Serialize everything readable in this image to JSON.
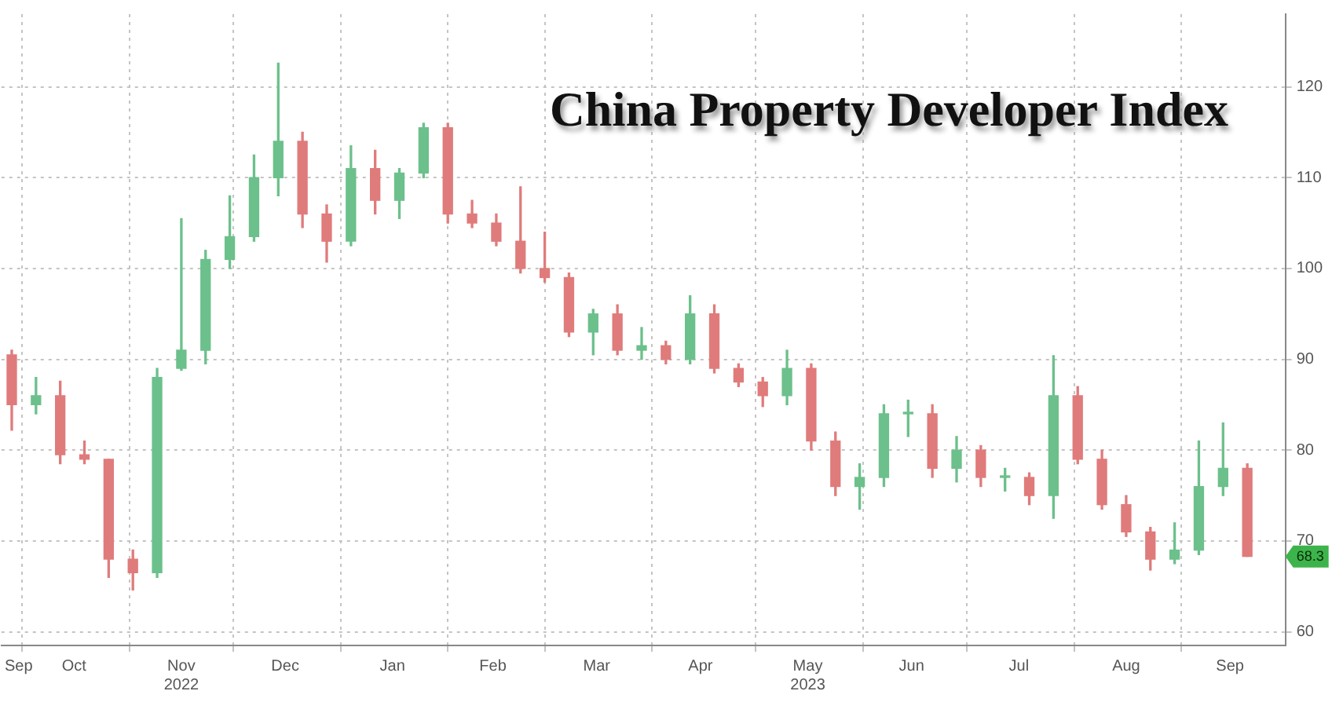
{
  "chart_data": {
    "type": "candlestick",
    "title": "China Property Developer Index",
    "x": [
      "2022-09-28",
      "2022-10-05",
      "2022-10-12",
      "2022-10-19",
      "2022-10-26",
      "2022-11-02",
      "2022-11-09",
      "2022-11-16",
      "2022-11-23",
      "2022-11-30",
      "2022-12-07",
      "2022-12-14",
      "2022-12-21",
      "2022-12-28",
      "2023-01-04",
      "2023-01-11",
      "2023-01-18",
      "2023-01-25",
      "2023-02-01",
      "2023-02-08",
      "2023-02-15",
      "2023-02-22",
      "2023-03-01",
      "2023-03-08",
      "2023-03-15",
      "2023-03-22",
      "2023-03-29",
      "2023-04-05",
      "2023-04-12",
      "2023-04-19",
      "2023-04-26",
      "2023-05-03",
      "2023-05-10",
      "2023-05-17",
      "2023-05-24",
      "2023-05-31",
      "2023-06-07",
      "2023-06-14",
      "2023-06-21",
      "2023-06-28",
      "2023-07-05",
      "2023-07-12",
      "2023-07-19",
      "2023-07-26",
      "2023-08-02",
      "2023-08-09",
      "2023-08-16",
      "2023-08-23",
      "2023-08-30",
      "2023-09-06",
      "2023-09-13",
      "2023-09-20"
    ],
    "ohlc": [
      [
        90.5,
        91,
        82.2,
        85
      ],
      [
        85,
        88,
        84,
        86
      ],
      [
        86,
        87.6,
        78.5,
        79.5
      ],
      [
        79.5,
        81,
        78.5,
        79
      ],
      [
        79,
        79,
        66,
        68
      ],
      [
        68,
        69,
        64.6,
        66.5
      ],
      [
        66.5,
        89,
        66,
        88
      ],
      [
        89,
        105.5,
        88.8,
        91
      ],
      [
        91,
        102,
        89.5,
        101
      ],
      [
        101,
        108,
        100,
        103.5
      ],
      [
        103.5,
        112.5,
        103,
        110
      ],
      [
        110,
        122.6,
        108,
        114
      ],
      [
        114,
        115,
        104.5,
        106
      ],
      [
        106,
        107,
        100.7,
        103
      ],
      [
        103,
        113.5,
        102.5,
        111
      ],
      [
        111,
        113,
        106,
        107.5
      ],
      [
        107.5,
        111,
        105.5,
        110.5
      ],
      [
        110.5,
        116,
        110,
        115.5
      ],
      [
        115.5,
        116,
        105,
        106
      ],
      [
        106,
        107.5,
        104.5,
        105
      ],
      [
        105,
        106,
        102.5,
        103
      ],
      [
        103,
        109,
        99.5,
        100
      ],
      [
        100,
        104,
        98.5,
        99
      ],
      [
        99,
        99.5,
        92.5,
        93
      ],
      [
        93,
        95.5,
        90.5,
        95
      ],
      [
        95,
        96,
        90.5,
        91
      ],
      [
        91,
        93.5,
        90,
        91.5
      ],
      [
        91.5,
        92,
        89.5,
        90
      ],
      [
        90,
        97,
        89.5,
        95
      ],
      [
        95,
        96,
        88.5,
        89
      ],
      [
        89,
        89.5,
        87,
        87.5
      ],
      [
        87.5,
        88,
        84.8,
        86
      ],
      [
        86,
        91,
        85,
        89
      ],
      [
        89,
        89.5,
        80,
        81
      ],
      [
        81,
        82,
        75,
        76
      ],
      [
        76,
        78.5,
        73.5,
        77
      ],
      [
        77,
        85,
        76,
        84
      ],
      [
        84,
        85.5,
        81.5,
        84
      ],
      [
        84,
        85,
        77,
        78
      ],
      [
        78,
        81.5,
        76.5,
        80
      ],
      [
        80,
        80.5,
        76,
        77
      ],
      [
        77,
        78,
        75.5,
        77
      ],
      [
        77,
        77.5,
        74,
        75
      ],
      [
        75,
        90.4,
        72.5,
        86
      ],
      [
        86,
        87,
        78.5,
        79
      ],
      [
        79,
        80,
        73.5,
        74
      ],
      [
        74,
        75,
        70.5,
        71
      ],
      [
        71,
        71.5,
        66.8,
        68
      ],
      [
        68,
        72,
        67.5,
        69
      ],
      [
        69,
        81,
        68.5,
        76
      ],
      [
        76,
        83,
        75,
        78
      ],
      [
        78,
        78.5,
        68.3,
        68.3
      ]
    ],
    "colors": [
      "#e07b7b",
      "#6cc08b",
      "#e07b7b",
      "#e07b7b",
      "#e07b7b",
      "#e07b7b",
      "#6cc08b",
      "#6cc08b",
      "#6cc08b",
      "#6cc08b",
      "#6cc08b",
      "#6cc08b",
      "#e07b7b",
      "#e07b7b",
      "#6cc08b",
      "#e07b7b",
      "#6cc08b",
      "#6cc08b",
      "#e07b7b",
      "#e07b7b",
      "#e07b7b",
      "#e07b7b",
      "#e07b7b",
      "#e07b7b",
      "#6cc08b",
      "#e07b7b",
      "#6cc08b",
      "#e07b7b",
      "#6cc08b",
      "#e07b7b",
      "#e07b7b",
      "#e07b7b",
      "#6cc08b",
      "#e07b7b",
      "#e07b7b",
      "#6cc08b",
      "#6cc08b",
      "#6cc08b",
      "#e07b7b",
      "#6cc08b",
      "#e07b7b",
      "#6cc08b",
      "#e07b7b",
      "#6cc08b",
      "#e07b7b",
      "#e07b7b",
      "#e07b7b",
      "#e07b7b",
      "#6cc08b",
      "#6cc08b",
      "#6cc08b",
      "#e07b7b"
    ],
    "xlim": [
      "2022-09-25",
      "2023-10-01"
    ],
    "xticks": [
      {
        "value": "2022-09-30",
        "label": "Sep"
      },
      {
        "value": "2022-10-01",
        "label": null
      },
      {
        "value": "2022-10-16",
        "label": "Oct"
      },
      {
        "value": "2022-11-01",
        "label": null
      },
      {
        "value": "2022-11-16",
        "label": "Nov\n2022"
      },
      {
        "value": "2022-12-01",
        "label": null
      },
      {
        "value": "2022-12-16",
        "label": "Dec"
      },
      {
        "value": "2023-01-01",
        "label": null
      },
      {
        "value": "2023-01-16",
        "label": "Jan"
      },
      {
        "value": "2023-02-01",
        "label": null
      },
      {
        "value": "2023-02-14",
        "label": "Feb"
      },
      {
        "value": "2023-03-01",
        "label": null
      },
      {
        "value": "2023-03-16",
        "label": "Mar"
      },
      {
        "value": "2023-04-01",
        "label": null
      },
      {
        "value": "2023-04-15",
        "label": "Apr"
      },
      {
        "value": "2023-05-01",
        "label": null
      },
      {
        "value": "2023-05-16",
        "label": "May\n2023"
      },
      {
        "value": "2023-06-01",
        "label": null
      },
      {
        "value": "2023-06-15",
        "label": "Jun"
      },
      {
        "value": "2023-07-01",
        "label": null
      },
      {
        "value": "2023-07-16",
        "label": "Jul"
      },
      {
        "value": "2023-08-01",
        "label": null
      },
      {
        "value": "2023-08-16",
        "label": "Aug"
      },
      {
        "value": "2023-09-01",
        "label": null
      },
      {
        "value": "2023-09-15",
        "label": "Sep"
      }
    ],
    "ylim": [
      58.5,
      128
    ],
    "yticks": [
      60,
      70,
      80,
      90,
      100,
      110,
      120
    ],
    "grid": true,
    "annotations": [
      "68.3"
    ]
  }
}
